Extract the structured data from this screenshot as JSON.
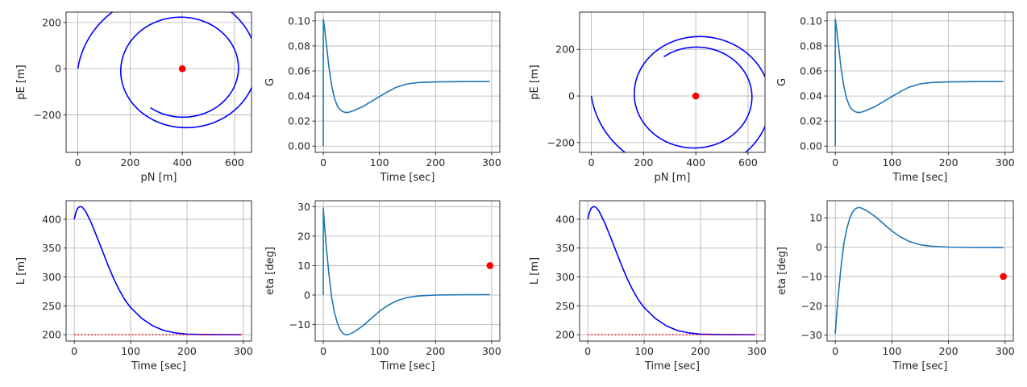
{
  "colors": {
    "trajectory": "#0000ff",
    "series": "#1f77b4",
    "target": "#ff0000",
    "grid": "#b0b0b0"
  },
  "chart_data": [
    {
      "id": "p1",
      "type": "line",
      "xlabel": "pN [m]",
      "ylabel": "pE [m]",
      "xlim": [
        -45,
        665
      ],
      "ylim": [
        -362,
        245
      ],
      "xticks": [
        0,
        200,
        400,
        600
      ],
      "yticks": [
        -200,
        0,
        200
      ],
      "xtick_labels": [
        "0",
        "200",
        "400",
        "600"
      ],
      "ytick_labels": [
        "−200",
        "0",
        "200"
      ],
      "grid": true,
      "series": [
        {
          "kind": "spiral",
          "start": [
            0,
            0
          ],
          "center": [
            400,
            0
          ],
          "r_start": 400,
          "r_end": 200,
          "direction": -1,
          "turns": 1.85,
          "color": "trajectory"
        }
      ],
      "markers": [
        {
          "x": 400,
          "y": 0,
          "color": "target"
        }
      ]
    },
    {
      "id": "p2",
      "type": "line",
      "xlabel": "Time [sec]",
      "ylabel": "G",
      "xlim": [
        -14.5,
        314.5
      ],
      "ylim": [
        -0.005,
        0.107
      ],
      "xticks": [
        0,
        100,
        200,
        300
      ],
      "yticks": [
        0,
        0.02,
        0.04,
        0.06,
        0.08,
        0.1
      ],
      "xtick_labels": [
        "0",
        "100",
        "200",
        "300"
      ],
      "ytick_labels": [
        "0.00",
        "0.02",
        "0.04",
        "0.06",
        "0.08",
        "0.10"
      ],
      "grid": true,
      "series": [
        {
          "kind": "points",
          "color": "series",
          "points": [
            [
              0,
              0
            ],
            [
              0,
              0.1013
            ],
            [
              2,
              0.095
            ],
            [
              5,
              0.083
            ],
            [
              10,
              0.063
            ],
            [
              15,
              0.048
            ],
            [
              20,
              0.038
            ],
            [
              25,
              0.032
            ],
            [
              30,
              0.029
            ],
            [
              35,
              0.0275
            ],
            [
              40,
              0.0268
            ],
            [
              45,
              0.027
            ],
            [
              55,
              0.0285
            ],
            [
              70,
              0.0315
            ],
            [
              85,
              0.0355
            ],
            [
              100,
              0.0395
            ],
            [
              115,
              0.0435
            ],
            [
              130,
              0.047
            ],
            [
              150,
              0.0497
            ],
            [
              170,
              0.0508
            ],
            [
              200,
              0.0513
            ],
            [
              250,
              0.0515
            ],
            [
              297,
              0.0515
            ]
          ]
        }
      ],
      "markers": []
    },
    {
      "id": "p3",
      "type": "line",
      "xlabel": "pN [m]",
      "ylabel": "pE [m]",
      "xlim": [
        -45,
        665
      ],
      "ylim": [
        -242,
        360
      ],
      "xticks": [
        0,
        200,
        400,
        600
      ],
      "yticks": [
        -200,
        0,
        200
      ],
      "xtick_labels": [
        "0",
        "200",
        "400",
        "600"
      ],
      "ytick_labels": [
        "−200",
        "0",
        "200"
      ],
      "grid": true,
      "series": [
        {
          "kind": "spiral",
          "start": [
            0,
            0
          ],
          "center": [
            400,
            0
          ],
          "r_start": 400,
          "r_end": 200,
          "direction": 1,
          "turns": 1.85,
          "color": "trajectory"
        }
      ],
      "markers": [
        {
          "x": 400,
          "y": 0,
          "color": "target"
        }
      ]
    },
    {
      "id": "p4",
      "type": "line",
      "xlabel": "Time [sec]",
      "ylabel": "G",
      "xlim": [
        -14.5,
        314.5
      ],
      "ylim": [
        -0.005,
        0.107
      ],
      "xticks": [
        0,
        100,
        200,
        300
      ],
      "yticks": [
        0,
        0.02,
        0.04,
        0.06,
        0.08,
        0.1
      ],
      "xtick_labels": [
        "0",
        "100",
        "200",
        "300"
      ],
      "ytick_labels": [
        "0.00",
        "0.02",
        "0.04",
        "0.06",
        "0.08",
        "0.10"
      ],
      "grid": true,
      "series": [
        {
          "kind": "points",
          "color": "series",
          "points": [
            [
              0,
              0
            ],
            [
              0,
              0.1013
            ],
            [
              2,
              0.095
            ],
            [
              5,
              0.083
            ],
            [
              10,
              0.063
            ],
            [
              15,
              0.048
            ],
            [
              20,
              0.038
            ],
            [
              25,
              0.032
            ],
            [
              30,
              0.029
            ],
            [
              35,
              0.0275
            ],
            [
              40,
              0.0268
            ],
            [
              45,
              0.027
            ],
            [
              55,
              0.0285
            ],
            [
              70,
              0.0315
            ],
            [
              85,
              0.0355
            ],
            [
              100,
              0.0395
            ],
            [
              115,
              0.0435
            ],
            [
              130,
              0.047
            ],
            [
              150,
              0.0497
            ],
            [
              170,
              0.0508
            ],
            [
              200,
              0.0513
            ],
            [
              250,
              0.0515
            ],
            [
              297,
              0.0515
            ]
          ]
        }
      ],
      "markers": []
    },
    {
      "id": "p5",
      "type": "line",
      "xlabel": "Time [sec]",
      "ylabel": "L [m]",
      "xlim": [
        -14.5,
        314.5
      ],
      "ylim": [
        189,
        432
      ],
      "xticks": [
        0,
        100,
        200,
        300
      ],
      "yticks": [
        200,
        250,
        300,
        350,
        400
      ],
      "xtick_labels": [
        "0",
        "100",
        "200",
        "300"
      ],
      "ytick_labels": [
        "200",
        "250",
        "300",
        "350",
        "400"
      ],
      "grid": true,
      "series": [
        {
          "kind": "points",
          "color": "trajectory",
          "points": [
            [
              0,
              400
            ],
            [
              3,
              412
            ],
            [
              6,
              419
            ],
            [
              10,
              422
            ],
            [
              14,
              421
            ],
            [
              20,
              414
            ],
            [
              30,
              394
            ],
            [
              40,
              370
            ],
            [
              50,
              345
            ],
            [
              60,
              320
            ],
            [
              70,
              297
            ],
            [
              80,
              277
            ],
            [
              90,
              260
            ],
            [
              100,
              247
            ],
            [
              120,
              228
            ],
            [
              140,
              215
            ],
            [
              160,
              207
            ],
            [
              180,
              203
            ],
            [
              200,
              201
            ],
            [
              230,
              200.3
            ],
            [
              260,
              200.1
            ],
            [
              297,
              200
            ]
          ]
        },
        {
          "kind": "dotted",
          "color": "target",
          "points": [
            [
              0,
              200
            ],
            [
              297,
              200
            ]
          ]
        }
      ],
      "markers": []
    },
    {
      "id": "p6",
      "type": "line",
      "xlabel": "Time [sec]",
      "ylabel": "eta [deg]",
      "xlim": [
        -14.5,
        314.5
      ],
      "ylim": [
        -15.6,
        32
      ],
      "xticks": [
        0,
        100,
        200,
        300
      ],
      "yticks": [
        -10,
        0,
        10,
        20,
        30
      ],
      "xtick_labels": [
        "0",
        "100",
        "200",
        "300"
      ],
      "ytick_labels": [
        "−10",
        "0",
        "10",
        "20",
        "30"
      ],
      "grid": true,
      "series": [
        {
          "kind": "points",
          "color": "series",
          "points": [
            [
              0,
              0
            ],
            [
              0,
              29.5
            ],
            [
              2,
              24
            ],
            [
              5,
              17
            ],
            [
              10,
              7
            ],
            [
              15,
              -1
            ],
            [
              20,
              -6
            ],
            [
              25,
              -9.5
            ],
            [
              30,
              -11.8
            ],
            [
              35,
              -13
            ],
            [
              40,
              -13.5
            ],
            [
              45,
              -13.4
            ],
            [
              55,
              -12.5
            ],
            [
              70,
              -10.5
            ],
            [
              85,
              -8
            ],
            [
              100,
              -5.5
            ],
            [
              115,
              -3.5
            ],
            [
              130,
              -2
            ],
            [
              150,
              -0.8
            ],
            [
              170,
              -0.3
            ],
            [
              200,
              0
            ],
            [
              250,
              0.1
            ],
            [
              297,
              0.15
            ]
          ]
        }
      ],
      "markers": [
        {
          "x": 297,
          "y": 10,
          "color": "target"
        }
      ]
    },
    {
      "id": "p7",
      "type": "line",
      "xlabel": "Time [sec]",
      "ylabel": "L [m]",
      "xlim": [
        -14.5,
        314.5
      ],
      "ylim": [
        189,
        432
      ],
      "xticks": [
        0,
        100,
        200,
        300
      ],
      "yticks": [
        200,
        250,
        300,
        350,
        400
      ],
      "xtick_labels": [
        "0",
        "100",
        "200",
        "300"
      ],
      "ytick_labels": [
        "200",
        "250",
        "300",
        "350",
        "400"
      ],
      "grid": true,
      "series": [
        {
          "kind": "points",
          "color": "trajectory",
          "points": [
            [
              0,
              400
            ],
            [
              3,
              412
            ],
            [
              6,
              419
            ],
            [
              10,
              422
            ],
            [
              14,
              421
            ],
            [
              20,
              414
            ],
            [
              30,
              394
            ],
            [
              40,
              370
            ],
            [
              50,
              345
            ],
            [
              60,
              320
            ],
            [
              70,
              297
            ],
            [
              80,
              277
            ],
            [
              90,
              260
            ],
            [
              100,
              247
            ],
            [
              120,
              228
            ],
            [
              140,
              215
            ],
            [
              160,
              207
            ],
            [
              180,
              203
            ],
            [
              200,
              201
            ],
            [
              230,
              200.3
            ],
            [
              260,
              200.1
            ],
            [
              297,
              200
            ]
          ]
        },
        {
          "kind": "dotted",
          "color": "target",
          "points": [
            [
              0,
              200
            ],
            [
              297,
              200
            ]
          ]
        }
      ],
      "markers": []
    },
    {
      "id": "p8",
      "type": "line",
      "xlabel": "Time [sec]",
      "ylabel": "eta [deg]",
      "xlim": [
        -14.5,
        314.5
      ],
      "ylim": [
        -32,
        15.8
      ],
      "xticks": [
        0,
        100,
        200,
        300
      ],
      "yticks": [
        -30,
        -20,
        -10,
        0,
        10
      ],
      "xtick_labels": [
        "0",
        "100",
        "200",
        "300"
      ],
      "ytick_labels": [
        "−30",
        "−20",
        "−10",
        "0",
        "10"
      ],
      "grid": true,
      "series": [
        {
          "kind": "points",
          "color": "series",
          "points": [
            [
              0,
              -29.5
            ],
            [
              2,
              -24
            ],
            [
              5,
              -17
            ],
            [
              10,
              -7
            ],
            [
              15,
              1
            ],
            [
              20,
              6
            ],
            [
              25,
              9.5
            ],
            [
              30,
              11.8
            ],
            [
              35,
              13
            ],
            [
              40,
              13.5
            ],
            [
              45,
              13.4
            ],
            [
              55,
              12.5
            ],
            [
              70,
              10.5
            ],
            [
              85,
              8
            ],
            [
              100,
              5.5
            ],
            [
              115,
              3.5
            ],
            [
              130,
              2
            ],
            [
              150,
              0.8
            ],
            [
              170,
              0.3
            ],
            [
              200,
              0
            ],
            [
              250,
              -0.1
            ],
            [
              297,
              -0.15
            ]
          ]
        }
      ],
      "markers": [
        {
          "x": 297,
          "y": -10,
          "color": "target"
        }
      ]
    }
  ]
}
